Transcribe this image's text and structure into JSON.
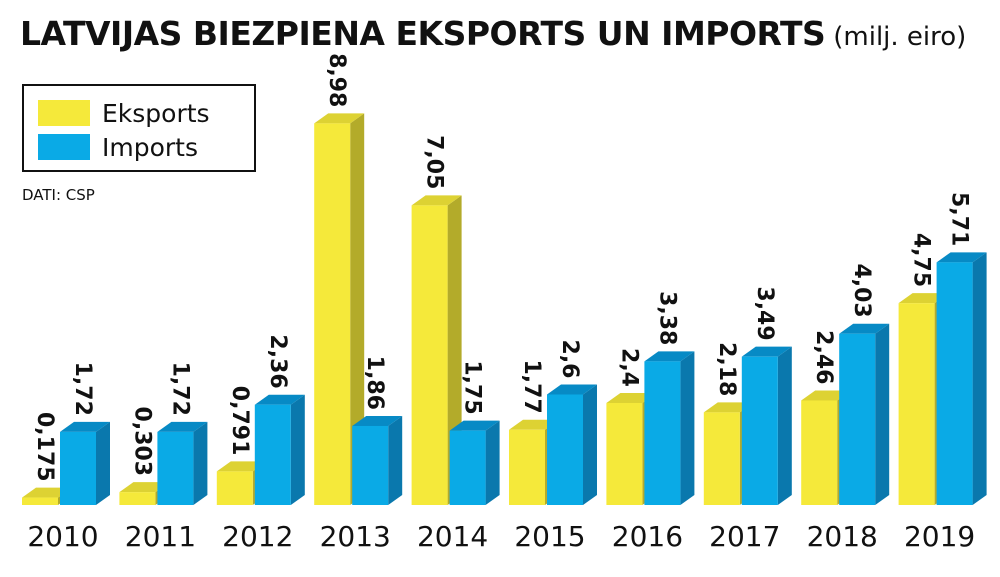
{
  "chart_data": {
    "type": "bar",
    "title": "LATVIJAS BIEZPIENA EKSPORTS UN IMPORTS",
    "subtitle": "(milj. eiro)",
    "source": "DATI: CSP",
    "categories": [
      "2010",
      "2011",
      "2012",
      "2013",
      "2014",
      "2015",
      "2016",
      "2017",
      "2018",
      "2019"
    ],
    "series": [
      {
        "name": "Eksports",
        "values": [
          0.175,
          0.303,
          0.791,
          8.98,
          7.05,
          1.77,
          2.4,
          2.18,
          2.46,
          4.75
        ],
        "labels": [
          "0,175",
          "0,303",
          "0,791",
          "8,98",
          "7,05",
          "1,77",
          "2,4",
          "2,18",
          "2,46",
          "4,75"
        ]
      },
      {
        "name": "Imports",
        "values": [
          1.72,
          1.72,
          2.36,
          1.86,
          1.75,
          2.6,
          3.38,
          3.49,
          4.03,
          5.71
        ],
        "labels": [
          "1,72",
          "1,72",
          "2,36",
          "1,86",
          "1,75",
          "2,6",
          "3,38",
          "3,49",
          "4,03",
          "5,71"
        ]
      }
    ],
    "legend_position": "top-left",
    "grid": false,
    "colors": {
      "Eksports_front": "#f5e93a",
      "Eksports_side": "#b3ab2a",
      "Eksports_top": "#ddd233",
      "Imports_front": "#0aaae6",
      "Imports_side": "#0a78ad",
      "Imports_top": "#078ac5"
    }
  }
}
